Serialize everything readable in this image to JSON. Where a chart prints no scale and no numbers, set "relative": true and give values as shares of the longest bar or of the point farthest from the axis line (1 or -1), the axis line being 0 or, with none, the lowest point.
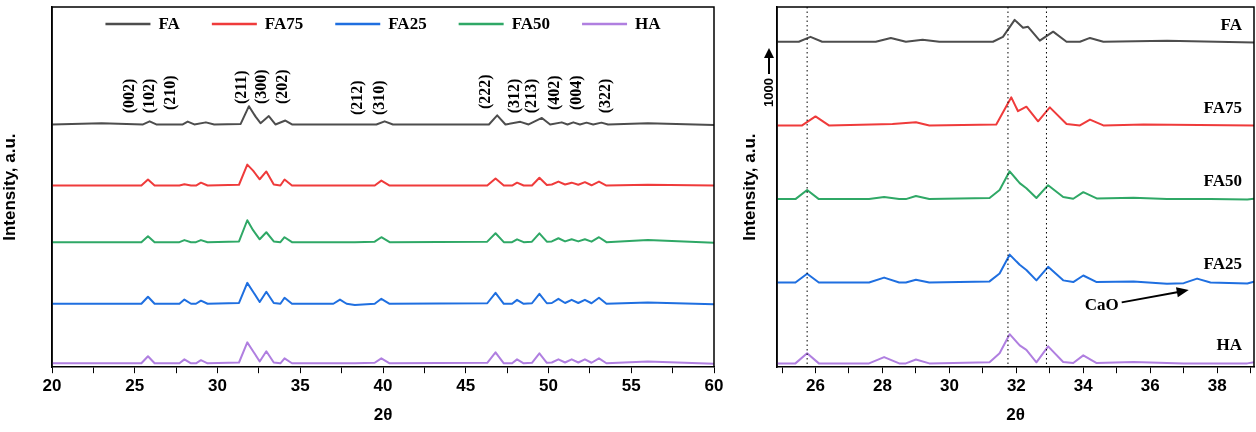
{
  "chart_data": [
    {
      "type": "line",
      "relative": true,
      "xlabel": "2θ",
      "ylabel": "Intensity, a.u.",
      "xlim": [
        20,
        60
      ],
      "xticks": [
        20,
        {
          "value": 22.5,
          "label": null
        },
        25,
        {
          "value": 27.5,
          "label": null
        },
        30,
        {
          "value": 32.5,
          "label": null
        },
        35,
        {
          "value": 37.5,
          "label": null
        },
        40,
        {
          "value": 42.5,
          "label": null
        },
        45,
        {
          "value": 47.5,
          "label": null
        },
        50,
        {
          "value": 52.5,
          "label": null
        },
        55,
        {
          "value": 57.5,
          "label": null
        },
        60
      ],
      "legend": "top",
      "marker": "none",
      "line_style": "solid",
      "x": [
        20,
        25.4,
        25.8,
        26.2,
        27.7,
        28.0,
        28.4,
        28.7,
        29.0,
        29.4,
        31.3,
        31.8,
        32.15,
        32.55,
        32.95,
        33.4,
        33.8,
        34.05,
        34.5,
        37.0,
        37.4,
        37.8,
        38.3,
        39.5,
        39.9,
        40.4,
        46.3,
        46.8,
        47.3,
        47.8,
        48.1,
        48.5,
        49.0,
        49.45,
        49.9,
        50.2,
        50.6,
        51.0,
        51.4,
        51.8,
        52.2,
        52.6,
        53.05,
        53.5,
        56.0,
        60
      ],
      "series": [
        {
          "name": "FA",
          "color": "#4d4d4d",
          "x": [
            20,
            23,
            25.5,
            25.9,
            26.3,
            27.9,
            28.2,
            28.6,
            29.3,
            29.8,
            31.4,
            31.9,
            32.3,
            32.6,
            33.1,
            33.5,
            34.1,
            34.5,
            39.6,
            40.1,
            40.6,
            46.4,
            46.9,
            47.4,
            48.3,
            48.8,
            49.6,
            50.1,
            50.8,
            51.15,
            51.5,
            51.9,
            52.3,
            52.7,
            53.2,
            53.6,
            56,
            60
          ],
          "values": [
            0.93,
            0.935,
            0.93,
            0.942,
            0.93,
            0.93,
            0.941,
            0.93,
            0.938,
            0.93,
            0.932,
            1.0,
            0.96,
            0.935,
            0.962,
            0.93,
            0.945,
            0.93,
            0.93,
            0.942,
            0.93,
            0.93,
            0.965,
            0.93,
            0.94,
            0.93,
            0.955,
            0.93,
            0.938,
            0.93,
            0.938,
            0.93,
            0.937,
            0.93,
            0.937,
            0.93,
            0.935,
            0.928
          ]
        },
        {
          "name": "FA75",
          "color": "#ef3b3b",
          "values": [
            0.696,
            0.696,
            0.719,
            0.696,
            0.696,
            0.701,
            0.696,
            0.696,
            0.707,
            0.696,
            0.699,
            0.776,
            0.753,
            0.72,
            0.75,
            0.7,
            0.696,
            0.719,
            0.696,
            0.696,
            0.696,
            0.696,
            0.696,
            0.696,
            0.715,
            0.696,
            0.696,
            0.723,
            0.696,
            0.696,
            0.707,
            0.696,
            0.696,
            0.726,
            0.698,
            0.7,
            0.711,
            0.7,
            0.707,
            0.699,
            0.709,
            0.697,
            0.711,
            0.696,
            0.699,
            0.696
          ]
        },
        {
          "name": "FA25",
          "color": "#1f6fe0",
          "values": [
            0.243,
            0.243,
            0.27,
            0.243,
            0.243,
            0.259,
            0.243,
            0.243,
            0.255,
            0.243,
            0.246,
            0.323,
            0.289,
            0.25,
            0.289,
            0.246,
            0.243,
            0.266,
            0.243,
            0.243,
            0.259,
            0.243,
            0.238,
            0.243,
            0.262,
            0.243,
            0.245,
            0.285,
            0.243,
            0.243,
            0.258,
            0.243,
            0.245,
            0.281,
            0.245,
            0.246,
            0.262,
            0.246,
            0.258,
            0.246,
            0.258,
            0.245,
            0.266,
            0.243,
            0.248,
            0.241
          ]
        },
        {
          "name": "FA50",
          "color": "#2fa866",
          "values": [
            0.479,
            0.479,
            0.502,
            0.479,
            0.479,
            0.487,
            0.479,
            0.479,
            0.487,
            0.479,
            0.482,
            0.563,
            0.525,
            0.49,
            0.517,
            0.482,
            0.479,
            0.498,
            0.479,
            0.479,
            0.479,
            0.479,
            0.479,
            0.481,
            0.498,
            0.479,
            0.481,
            0.513,
            0.479,
            0.479,
            0.49,
            0.479,
            0.481,
            0.513,
            0.481,
            0.482,
            0.494,
            0.482,
            0.49,
            0.482,
            0.49,
            0.481,
            0.498,
            0.479,
            0.487,
            0.477
          ]
        },
        {
          "name": "HA",
          "color": "#b07fe0",
          "values": [
            0.015,
            0.015,
            0.042,
            0.015,
            0.015,
            0.03,
            0.015,
            0.015,
            0.027,
            0.015,
            0.018,
            0.095,
            0.061,
            0.022,
            0.061,
            0.018,
            0.015,
            0.034,
            0.015,
            0.015,
            0.015,
            0.015,
            0.015,
            0.017,
            0.034,
            0.015,
            0.017,
            0.057,
            0.015,
            0.015,
            0.03,
            0.015,
            0.017,
            0.053,
            0.017,
            0.018,
            0.03,
            0.018,
            0.03,
            0.018,
            0.03,
            0.017,
            0.034,
            0.015,
            0.022,
            0.013
          ]
        }
      ],
      "annotations": [
        "(002)",
        "(102)",
        "(210)",
        "(211)",
        "(300)",
        "(202)",
        "(212)",
        "(310)",
        "(222)",
        "(312)",
        "(213)",
        "(402)",
        "(004)",
        "(322)"
      ]
    },
    {
      "type": "line",
      "relative": true,
      "xlabel": "2θ",
      "ylabel": "Intensity, a.u.",
      "xlim": [
        24.85,
        39.1
      ],
      "xticks": [
        {
          "value": 25,
          "label": null
        },
        26,
        {
          "value": 27,
          "label": null
        },
        28,
        {
          "value": 29,
          "label": null
        },
        30,
        {
          "value": 31,
          "label": null
        },
        32,
        {
          "value": 33,
          "label": null
        },
        34,
        {
          "value": 35,
          "label": null
        },
        36,
        {
          "value": 37,
          "label": null
        },
        38,
        {
          "value": 39,
          "label": null
        }
      ],
      "marker": "none",
      "line_style": "solid",
      "x": [
        24.85,
        25.4,
        25.75,
        26.1,
        27.6,
        28.05,
        28.5,
        28.7,
        29.0,
        29.4,
        31.2,
        31.5,
        31.8,
        32.1,
        32.3,
        32.6,
        32.95,
        33.4,
        33.7,
        34.0,
        34.4,
        35.5,
        36.5,
        37.0,
        37.4,
        37.8,
        38.9,
        39.1
      ],
      "series": [
        {
          "name": "FA",
          "color": "#4d4d4d",
          "x": [
            24.85,
            25.5,
            25.85,
            26.2,
            27.8,
            28.25,
            28.7,
            29.2,
            29.7,
            31.3,
            31.6,
            31.95,
            32.2,
            32.35,
            32.7,
            33.1,
            33.5,
            33.9,
            34.2,
            34.6,
            36.5,
            39.1
          ],
          "values": [
            0.937,
            0.937,
            0.951,
            0.937,
            0.937,
            0.948,
            0.937,
            0.943,
            0.937,
            0.937,
            0.951,
            1.0,
            0.977,
            0.98,
            0.94,
            0.966,
            0.937,
            0.937,
            0.948,
            0.937,
            0.94,
            0.935
          ]
        },
        {
          "name": "FA75",
          "color": "#ef3b3b",
          "x": [
            24.85,
            25.6,
            26.0,
            26.4,
            28.3,
            29.0,
            29.4,
            31.4,
            31.85,
            32.05,
            32.3,
            32.65,
            33.0,
            33.5,
            33.9,
            34.2,
            34.6,
            35.8,
            39.1
          ],
          "values": [
            0.696,
            0.696,
            0.722,
            0.696,
            0.7,
            0.705,
            0.696,
            0.699,
            0.777,
            0.737,
            0.75,
            0.708,
            0.748,
            0.7,
            0.696,
            0.713,
            0.696,
            0.699,
            0.696
          ]
        },
        {
          "name": "FA50",
          "color": "#2fa866",
          "values": [
            0.484,
            0.484,
            0.51,
            0.484,
            0.484,
            0.49,
            0.484,
            0.484,
            0.493,
            0.484,
            0.487,
            0.51,
            0.564,
            0.53,
            0.515,
            0.487,
            0.524,
            0.49,
            0.485,
            0.504,
            0.486,
            0.488,
            0.484,
            0.484,
            0.484,
            0.484,
            0.483,
            0.485
          ]
        },
        {
          "name": "FA25",
          "color": "#1f6fe0",
          "values": [
            0.244,
            0.244,
            0.269,
            0.244,
            0.244,
            0.258,
            0.244,
            0.244,
            0.252,
            0.244,
            0.247,
            0.27,
            0.324,
            0.295,
            0.28,
            0.25,
            0.289,
            0.25,
            0.245,
            0.264,
            0.245,
            0.247,
            0.24,
            0.242,
            0.255,
            0.244,
            0.241,
            0.246
          ]
        },
        {
          "name": "HA",
          "color": "#b07fe0",
          "values": [
            0.011,
            0.011,
            0.04,
            0.011,
            0.011,
            0.029,
            0.011,
            0.011,
            0.022,
            0.011,
            0.014,
            0.04,
            0.095,
            0.063,
            0.05,
            0.014,
            0.06,
            0.015,
            0.012,
            0.034,
            0.012,
            0.015,
            0.012,
            0.011,
            0.011,
            0.011,
            0.011,
            0.014
          ]
        }
      ],
      "ref_lines": [
        {
          "axis": "x",
          "value": 25.75,
          "color": "#000000",
          "line_style": "dotted"
        },
        {
          "axis": "x",
          "value": 31.75,
          "color": "#000000",
          "line_style": "dotted"
        },
        {
          "axis": "x",
          "value": 32.9,
          "color": "#000000",
          "line_style": "dotted"
        }
      ],
      "annotations": [
        "1000",
        "CaO"
      ]
    }
  ]
}
